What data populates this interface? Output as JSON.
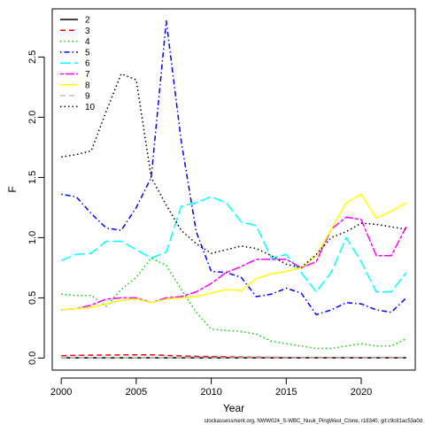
{
  "chart_data": {
    "type": "line",
    "title": "",
    "xlabel": "Year",
    "ylabel": "F",
    "xlim": [
      1999.4,
      2023.6
    ],
    "ylim": [
      -0.1,
      2.9
    ],
    "x_ticks": [
      2000,
      2005,
      2010,
      2015,
      2020
    ],
    "y_ticks": [
      0.0,
      0.5,
      1.0,
      1.5,
      2.0,
      2.5
    ],
    "grid": false,
    "legend_position": "top-left",
    "caption": "stockassessment.org, NWW024_S-WBC_Nuuk_PingWest_Clone, r18340, git:c9c81ac53a0d",
    "x": [
      2000,
      2001,
      2002,
      2003,
      2004,
      2005,
      2006,
      2007,
      2008,
      2009,
      2010,
      2011,
      2012,
      2013,
      2014,
      2015,
      2016,
      2017,
      2018,
      2019,
      2020,
      2021,
      2022,
      2023
    ],
    "series": [
      {
        "name": "2",
        "color": "#000000",
        "dash": "solid",
        "values": [
          0.002,
          0.002,
          0.002,
          0.002,
          0.002,
          0.002,
          0.002,
          0.002,
          0.002,
          0.002,
          0.002,
          0.002,
          0.002,
          0.002,
          0.002,
          0.002,
          0.002,
          0.002,
          0.002,
          0.002,
          0.002,
          0.002,
          0.002,
          0.002
        ]
      },
      {
        "name": "3",
        "color": "#ff0000",
        "dash": "dashed",
        "values": [
          0.02,
          0.022,
          0.024,
          0.025,
          0.026,
          0.027,
          0.027,
          0.022,
          0.018,
          0.014,
          0.012,
          0.01,
          0.008,
          0.007,
          0.006,
          0.005,
          0.004,
          0.004,
          0.004,
          0.004,
          0.004,
          0.004,
          0.004,
          0.004
        ]
      },
      {
        "name": "4",
        "color": "#00cc00",
        "dash": "dotted",
        "values": [
          0.53,
          0.52,
          0.52,
          0.43,
          0.57,
          0.67,
          0.83,
          0.77,
          0.57,
          0.38,
          0.24,
          0.23,
          0.22,
          0.2,
          0.14,
          0.12,
          0.1,
          0.08,
          0.08,
          0.1,
          0.12,
          0.1,
          0.1,
          0.16
        ]
      },
      {
        "name": "5",
        "color": "#0000ff",
        "dash": "dotdash",
        "values": [
          1.36,
          1.34,
          1.2,
          1.08,
          1.06,
          1.25,
          1.5,
          2.8,
          1.8,
          1.05,
          0.72,
          0.71,
          0.67,
          0.51,
          0.53,
          0.58,
          0.54,
          0.36,
          0.4,
          0.46,
          0.45,
          0.4,
          0.38,
          0.5
        ]
      },
      {
        "name": "6",
        "color": "#00ffff",
        "dash": "longdash",
        "values": [
          0.81,
          0.86,
          0.87,
          0.97,
          0.97,
          0.9,
          0.83,
          0.88,
          1.26,
          1.29,
          1.34,
          1.29,
          1.13,
          1.1,
          0.83,
          0.86,
          0.71,
          0.55,
          0.71,
          1.0,
          0.8,
          0.55,
          0.55,
          0.71
        ]
      },
      {
        "name": "7",
        "color": "#ff00ff",
        "dash": "twodash",
        "values": [
          0.4,
          0.41,
          0.44,
          0.49,
          0.5,
          0.5,
          0.46,
          0.5,
          0.51,
          0.55,
          0.62,
          0.71,
          0.76,
          0.82,
          0.82,
          0.82,
          0.75,
          0.8,
          1.07,
          1.17,
          1.15,
          0.85,
          0.85,
          1.09
        ]
      },
      {
        "name": "8",
        "color": "#ffff00",
        "dash": "solid",
        "values": [
          0.4,
          0.41,
          0.42,
          0.45,
          0.48,
          0.49,
          0.46,
          0.49,
          0.5,
          0.51,
          0.54,
          0.57,
          0.56,
          0.66,
          0.7,
          0.72,
          0.75,
          0.85,
          1.07,
          1.29,
          1.36,
          1.16,
          1.22,
          1.29
        ]
      },
      {
        "name": "9",
        "color": "#bebebe",
        "dash": "dashed",
        "values": [
          0.002,
          0.002,
          0.002,
          0.002,
          0.002,
          0.002,
          0.002,
          0.002,
          0.002,
          0.002,
          0.002,
          0.002,
          0.002,
          0.002,
          0.002,
          0.002,
          0.002,
          0.002,
          0.002,
          0.002,
          0.002,
          0.002,
          0.002,
          0.002
        ]
      },
      {
        "name": "10",
        "color": "#000000",
        "dash": "dotted",
        "values": [
          1.67,
          1.69,
          1.72,
          2.05,
          2.36,
          2.31,
          1.5,
          1.27,
          1.06,
          0.95,
          0.87,
          0.9,
          0.93,
          0.91,
          0.85,
          0.78,
          0.75,
          0.86,
          1.0,
          1.05,
          1.12,
          1.11,
          1.09,
          1.07
        ]
      }
    ]
  }
}
